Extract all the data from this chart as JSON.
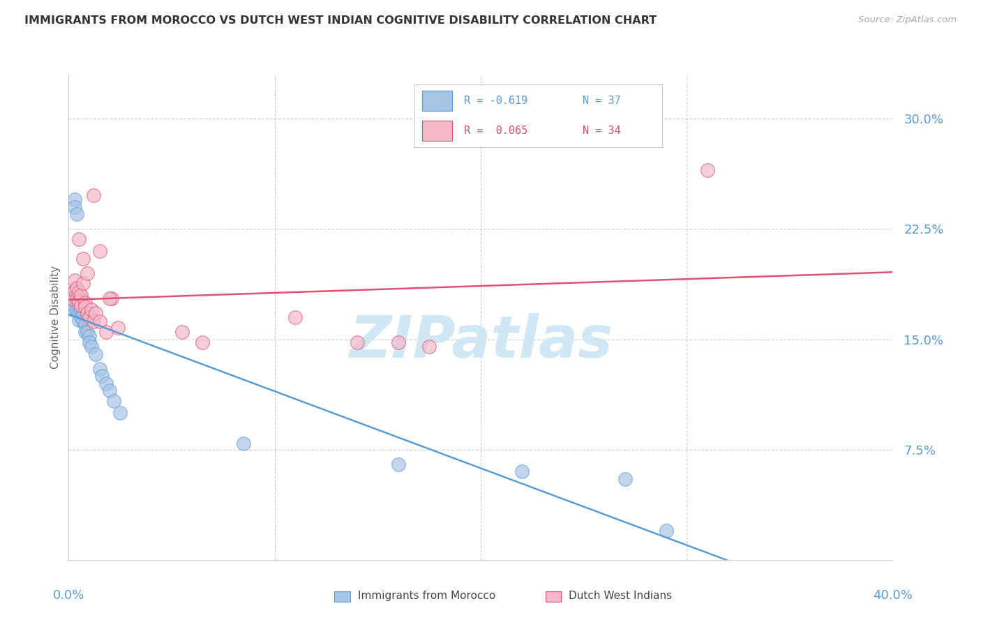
{
  "title": "IMMIGRANTS FROM MOROCCO VS DUTCH WEST INDIAN COGNITIVE DISABILITY CORRELATION CHART",
  "source": "Source: ZipAtlas.com",
  "ylabel": "Cognitive Disability",
  "yticks": [
    0.075,
    0.15,
    0.225,
    0.3
  ],
  "ytick_labels": [
    "7.5%",
    "15.0%",
    "22.5%",
    "30.0%"
  ],
  "xtick_labels": [
    "0.0%",
    "",
    "",
    "",
    "40.0%"
  ],
  "xticks": [
    0.0,
    0.1,
    0.2,
    0.3,
    0.4
  ],
  "xmin": 0.0,
  "xmax": 0.4,
  "ymin": 0.0,
  "ymax": 0.33,
  "legend_r1": "R = -0.619",
  "legend_n1": "N = 37",
  "legend_r2": "R =  0.065",
  "legend_n2": "N = 34",
  "label1": "Immigrants from Morocco",
  "label2": "Dutch West Indians",
  "color1": "#a8c4e5",
  "color2": "#f4b8c8",
  "line_color1": "#5b9bd5",
  "line_color2": "#e05070",
  "axis_label_color": "#5b9bd5",
  "watermark_color": "#d0e8f5",
  "morocco_x": [
    0.002,
    0.002,
    0.003,
    0.003,
    0.003,
    0.004,
    0.004,
    0.004,
    0.005,
    0.005,
    0.005,
    0.006,
    0.006,
    0.006,
    0.007,
    0.007,
    0.008,
    0.008,
    0.009,
    0.01,
    0.01,
    0.011,
    0.013,
    0.015,
    0.016,
    0.018,
    0.02,
    0.022,
    0.025,
    0.003,
    0.003,
    0.004,
    0.085,
    0.16,
    0.22,
    0.27,
    0.29
  ],
  "morocco_y": [
    0.175,
    0.17,
    0.183,
    0.178,
    0.172,
    0.18,
    0.175,
    0.17,
    0.173,
    0.168,
    0.163,
    0.178,
    0.17,
    0.165,
    0.168,
    0.162,
    0.16,
    0.155,
    0.155,
    0.152,
    0.148,
    0.145,
    0.14,
    0.13,
    0.125,
    0.12,
    0.115,
    0.108,
    0.1,
    0.245,
    0.24,
    0.235,
    0.079,
    0.065,
    0.06,
    0.055,
    0.02
  ],
  "dutch_x": [
    0.002,
    0.003,
    0.003,
    0.004,
    0.004,
    0.005,
    0.005,
    0.006,
    0.006,
    0.007,
    0.008,
    0.008,
    0.009,
    0.01,
    0.011,
    0.012,
    0.013,
    0.015,
    0.018,
    0.021,
    0.024,
    0.055,
    0.065,
    0.11,
    0.14,
    0.16,
    0.175,
    0.31,
    0.005,
    0.007,
    0.009,
    0.012,
    0.015,
    0.02
  ],
  "dutch_y": [
    0.178,
    0.19,
    0.183,
    0.185,
    0.178,
    0.182,
    0.176,
    0.18,
    0.173,
    0.188,
    0.175,
    0.172,
    0.168,
    0.165,
    0.17,
    0.162,
    0.168,
    0.162,
    0.155,
    0.178,
    0.158,
    0.155,
    0.148,
    0.165,
    0.148,
    0.148,
    0.145,
    0.265,
    0.218,
    0.205,
    0.195,
    0.248,
    0.21,
    0.178
  ]
}
